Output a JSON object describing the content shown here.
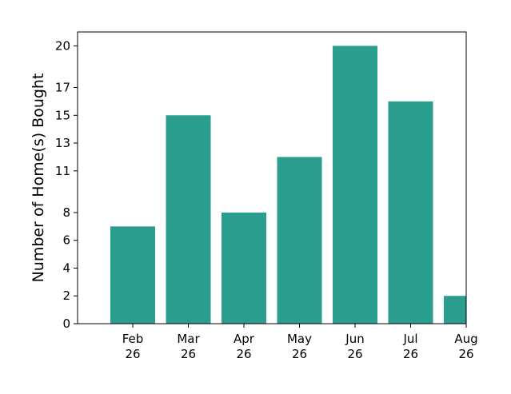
{
  "chart_data": {
    "type": "bar",
    "categories": [
      [
        "Feb",
        "26"
      ],
      [
        "Mar",
        "26"
      ],
      [
        "Apr",
        "26"
      ],
      [
        "May",
        "26"
      ],
      [
        "Jun",
        "26"
      ],
      [
        "Jul",
        "26"
      ],
      [
        "Aug",
        "26"
      ]
    ],
    "values": [
      7,
      15,
      8,
      12,
      20,
      16,
      2
    ],
    "xlabel": "",
    "ylabel": "Number of Home(s) Bought",
    "ylim": [
      0,
      21
    ],
    "yticks": [
      0,
      2,
      4,
      6,
      8,
      11,
      13,
      15,
      17,
      20
    ],
    "bar_color": "#2a9d8f",
    "grid": false,
    "legend": "none"
  }
}
